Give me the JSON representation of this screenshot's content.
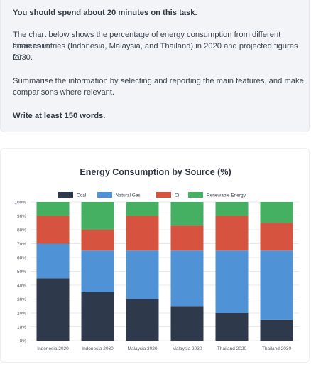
{
  "task": {
    "time_instruction": "You should spend about 20 minutes on this task.",
    "description_lines": [
      "The chart below shows the percentage of energy consumption from different sources in",
      "three countries (Indonesia, Malaysia, and Thailand) in 2020 and projected figures for",
      "2030."
    ],
    "summary_lines": [
      "Summarise the information by selecting and reporting the main features, and make",
      "comparisons where relevant."
    ],
    "word_requirement": "Write at least 150 words."
  },
  "colors": {
    "coal": "#2e3a4b",
    "natural_gas": "#4f93d6",
    "oil": "#d6533f",
    "renewable": "#45b062",
    "grid": "#e8eaed"
  },
  "chart_data": {
    "type": "bar",
    "stacked": true,
    "title": "Energy Consumption by Source (%)",
    "categories": [
      "Indonesia 2020",
      "Indonesia 2030",
      "Malaysia 2020",
      "Malaysia 2030",
      "Thailand 2020",
      "Thailand 2030"
    ],
    "series": [
      {
        "name": "Coal",
        "values": [
          45,
          35,
          30,
          25,
          20,
          15
        ]
      },
      {
        "name": "Natural Gas",
        "values": [
          25,
          30,
          35,
          40,
          45,
          50
        ]
      },
      {
        "name": "Oil",
        "values": [
          20,
          15,
          25,
          18,
          25,
          20
        ]
      },
      {
        "name": "Renewable Energy",
        "values": [
          10,
          20,
          10,
          17,
          10,
          15
        ]
      }
    ],
    "ylim": [
      0,
      100
    ],
    "yticks": [
      "0%",
      "10%",
      "20%",
      "30%",
      "40%",
      "50%",
      "60%",
      "70%",
      "80%",
      "90%",
      "100%"
    ],
    "grid": true,
    "legend_position": "top"
  }
}
